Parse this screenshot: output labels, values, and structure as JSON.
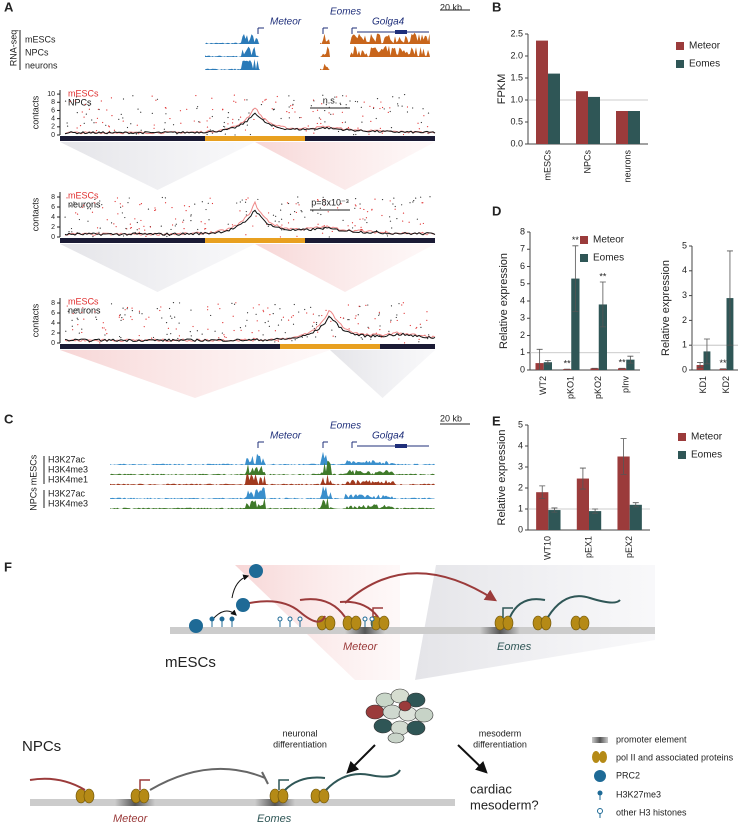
{
  "panel_labels": [
    "A",
    "B",
    "C",
    "D",
    "E",
    "F"
  ],
  "panel_a": {
    "assay": "RNA-seq",
    "tracks": [
      "mESCs",
      "NPCs",
      "neurons"
    ],
    "genes": [
      "Meteor",
      "Eomes",
      "Golga4"
    ],
    "scale": "20 kb",
    "y_label": "contacts",
    "plots": [
      {
        "series": [
          "mESCs",
          "NPCs"
        ],
        "yticks": [
          0,
          2,
          4,
          6,
          8,
          10
        ],
        "ylim": [
          0,
          11
        ],
        "annotation": "n.s."
      },
      {
        "series": [
          "mESCs",
          "neurons"
        ],
        "yticks": [
          0,
          2,
          4,
          6,
          8
        ],
        "ylim": [
          0,
          9
        ],
        "annotation": "p=8x10⁻³"
      },
      {
        "series": [
          "mESCs",
          "neurons"
        ],
        "yticks": [
          0,
          2,
          4,
          6,
          8
        ],
        "ylim": [
          0,
          9
        ]
      }
    ]
  },
  "panel_c": {
    "genes": [
      "Meteor",
      "Eomes",
      "Golga4"
    ],
    "scale": "20 kb",
    "groups": [
      {
        "name": "mESCs",
        "tracks": [
          "H3K27ac",
          "H3K4me3",
          "H3K4me1"
        ]
      },
      {
        "name": "NPCs",
        "tracks": [
          "H3K27ac",
          "H3K4me3"
        ]
      }
    ]
  },
  "chart_b": {
    "type": "bar",
    "y_label": "FPKM",
    "legend": "right",
    "categories": [
      "mESCs",
      "NPCs",
      "neurons"
    ],
    "series": [
      {
        "name": "Meteor",
        "color": "#9b3b3b",
        "values": [
          2.35,
          1.2,
          0.75
        ]
      },
      {
        "name": "Eomes",
        "color": "#2f5656",
        "values": [
          1.6,
          1.07,
          0.75
        ]
      }
    ],
    "ylim": [
      0,
      2.5
    ],
    "yticks": [
      {
        "value": 0,
        "label": "0.0"
      },
      {
        "value": 0.5,
        "label": "0.5"
      },
      {
        "value": 1,
        "label": "1.0"
      },
      {
        "value": 1.5,
        "label": "1.5"
      },
      {
        "value": 2,
        "label": "2.0"
      },
      {
        "value": 2.5,
        "label": "2.5"
      }
    ],
    "reference_line": 1
  },
  "chart_d1": {
    "type": "bar",
    "y_label": "Relative expression",
    "legend": "top",
    "categories": [
      "WT2",
      "pKO1",
      "pKO2",
      "pInv"
    ],
    "series": [
      {
        "name": "Meteor",
        "color": "#9b3b3b",
        "values": [
          0.4,
          0.05,
          0.1,
          0.1
        ],
        "errors": [
          0.8,
          0,
          0,
          0
        ],
        "labels": [
          null,
          "**",
          null,
          "**"
        ]
      },
      {
        "name": "Eomes",
        "color": "#2f5656",
        "values": [
          0.45,
          5.3,
          3.8,
          0.6
        ],
        "errors": [
          0.1,
          1.9,
          1.3,
          0.2
        ],
        "labels": [
          null,
          "**",
          "**",
          null
        ]
      }
    ],
    "ylim": [
      0,
      8
    ],
    "yticks": [
      0,
      1,
      2,
      3,
      4,
      5,
      6,
      7,
      8
    ],
    "reference_line": 1
  },
  "chart_d2": {
    "type": "bar",
    "y_label": "Relative expression",
    "categories": [
      "KD1",
      "KD2"
    ],
    "series": [
      {
        "name": "Meteor",
        "color": "#9b3b3b",
        "values": [
          0.2,
          0.05
        ],
        "errors": [
          0.1,
          0
        ],
        "labels": [
          null,
          "**"
        ]
      },
      {
        "name": "Eomes",
        "color": "#2f5656",
        "values": [
          0.75,
          2.9
        ],
        "errors": [
          0.5,
          1.9
        ],
        "labels": [
          null,
          null
        ]
      }
    ],
    "ylim": [
      0,
      5
    ],
    "yticks": [
      0,
      1,
      2,
      3,
      4,
      5
    ],
    "reference_line": 1
  },
  "chart_e": {
    "type": "bar",
    "y_label": "Relative expression",
    "legend": "right",
    "categories": [
      "WT10",
      "pEX1",
      "pEX2"
    ],
    "series": [
      {
        "name": "Meteor",
        "color": "#9b3b3b",
        "values": [
          1.8,
          2.45,
          3.5
        ],
        "errors": [
          0.3,
          0.5,
          0.85
        ]
      },
      {
        "name": "Eomes",
        "color": "#2f5656",
        "values": [
          0.95,
          0.9,
          1.2
        ],
        "errors": [
          0.1,
          0.1,
          0.1
        ]
      }
    ],
    "ylim": [
      0,
      5
    ],
    "yticks": [
      0,
      1,
      2,
      3,
      4,
      5
    ],
    "reference_line": 1
  },
  "panel_f": {
    "state_top": "mESCs",
    "state_bottom": "NPCs",
    "gene_top": [
      "Meteor",
      "Eomes"
    ],
    "gene_bottom": [
      "Meteor",
      "Eomes"
    ],
    "neuronal": [
      "neuronal",
      "differentiation"
    ],
    "mesoderm": [
      "mesoderm",
      "differentiation"
    ],
    "outcome": [
      "cardiac",
      "mesoderm?"
    ],
    "legend": [
      "promoter element",
      "pol II and associated proteins",
      "PRC2",
      "H3K27me3",
      "other H3 histones"
    ]
  }
}
